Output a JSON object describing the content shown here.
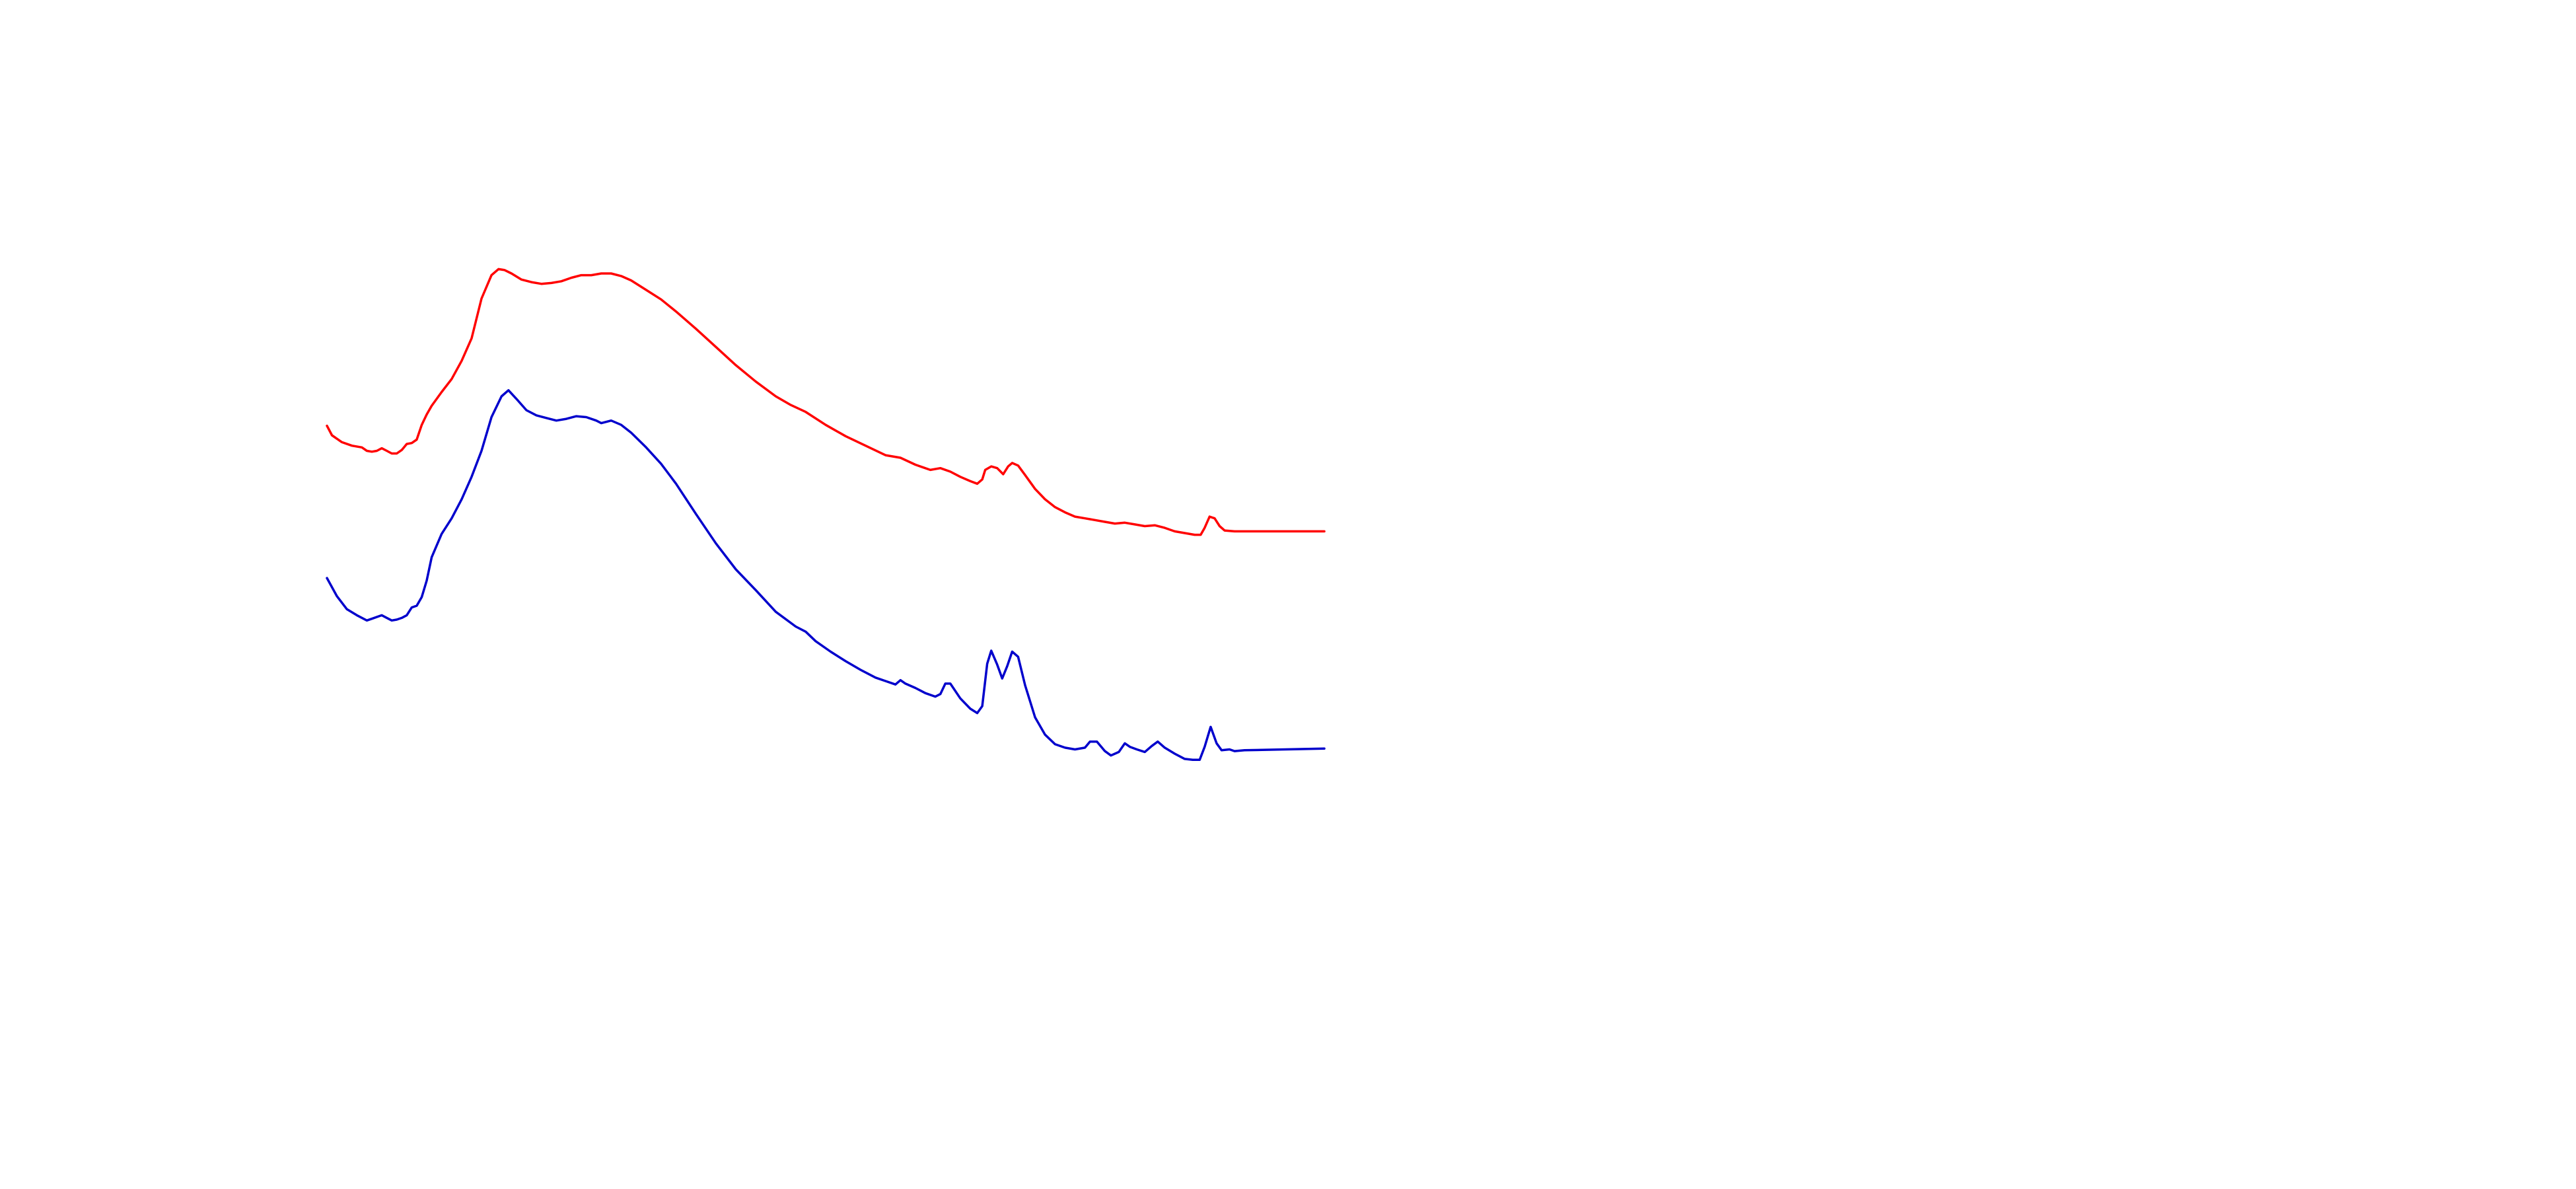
{
  "chart_data": {
    "type": "line",
    "title": "",
    "xlabel": "",
    "ylabel": "",
    "axes_visible": false,
    "grid": false,
    "legend": "none",
    "xlim": [
      0,
      100
    ],
    "ylim": [
      0,
      100
    ],
    "series": [
      {
        "color": "#ff0000",
        "points": [
          [
            0,
            69.5
          ],
          [
            0.5,
            68.4
          ],
          [
            1.5,
            67.6
          ],
          [
            2.5,
            67.2
          ],
          [
            3.5,
            67.0
          ],
          [
            4.0,
            66.6
          ],
          [
            4.5,
            66.5
          ],
          [
            5.0,
            66.6
          ],
          [
            5.5,
            66.9
          ],
          [
            6.0,
            66.6
          ],
          [
            6.5,
            66.3
          ],
          [
            7.0,
            66.3
          ],
          [
            7.5,
            66.7
          ],
          [
            8.0,
            67.4
          ],
          [
            8.5,
            67.5
          ],
          [
            9.0,
            67.9
          ],
          [
            9.5,
            69.6
          ],
          [
            10.0,
            70.8
          ],
          [
            10.5,
            71.8
          ],
          [
            11.5,
            73.4
          ],
          [
            12.5,
            74.9
          ],
          [
            13.5,
            77.0
          ],
          [
            14.5,
            79.6
          ],
          [
            15.5,
            84.2
          ],
          [
            16.5,
            86.9
          ],
          [
            17.2,
            87.6
          ],
          [
            17.8,
            87.5
          ],
          [
            18.5,
            87.1
          ],
          [
            19.5,
            86.4
          ],
          [
            20.5,
            86.1
          ],
          [
            21.5,
            85.9
          ],
          [
            22.5,
            86.0
          ],
          [
            23.5,
            86.2
          ],
          [
            24.5,
            86.6
          ],
          [
            25.5,
            86.9
          ],
          [
            26.5,
            86.9
          ],
          [
            27.5,
            87.1
          ],
          [
            28.5,
            87.1
          ],
          [
            29.5,
            86.8
          ],
          [
            30.5,
            86.3
          ],
          [
            32.0,
            85.2
          ],
          [
            33.5,
            84.1
          ],
          [
            35.0,
            82.7
          ],
          [
            37.0,
            80.7
          ],
          [
            39.0,
            78.6
          ],
          [
            41.0,
            76.5
          ],
          [
            43.0,
            74.6
          ],
          [
            45.0,
            72.9
          ],
          [
            46.5,
            71.9
          ],
          [
            48.0,
            71.1
          ],
          [
            50.0,
            69.6
          ],
          [
            52.0,
            68.3
          ],
          [
            54.0,
            67.2
          ],
          [
            56.0,
            66.1
          ],
          [
            57.5,
            65.8
          ],
          [
            59.0,
            65.0
          ],
          [
            60.5,
            64.4
          ],
          [
            61.5,
            64.6
          ],
          [
            62.5,
            64.2
          ],
          [
            63.5,
            63.6
          ],
          [
            64.5,
            63.1
          ],
          [
            65.2,
            62.8
          ],
          [
            65.7,
            63.3
          ],
          [
            66.0,
            64.4
          ],
          [
            66.6,
            64.8
          ],
          [
            67.2,
            64.6
          ],
          [
            67.8,
            63.9
          ],
          [
            68.3,
            64.8
          ],
          [
            68.7,
            65.2
          ],
          [
            69.3,
            64.9
          ],
          [
            70.0,
            63.8
          ],
          [
            71.0,
            62.2
          ],
          [
            72.0,
            61.0
          ],
          [
            73.0,
            60.1
          ],
          [
            74.0,
            59.5
          ],
          [
            75.0,
            59.0
          ],
          [
            76.0,
            58.8
          ],
          [
            77.0,
            58.6
          ],
          [
            78.0,
            58.4
          ],
          [
            79.0,
            58.2
          ],
          [
            80.0,
            58.3
          ],
          [
            81.0,
            58.1
          ],
          [
            82.0,
            57.9
          ],
          [
            83.0,
            58.0
          ],
          [
            84.0,
            57.7
          ],
          [
            85.0,
            57.3
          ],
          [
            86.0,
            57.1
          ],
          [
            87.0,
            56.9
          ],
          [
            87.6,
            56.9
          ],
          [
            88.0,
            57.7
          ],
          [
            88.5,
            59.0
          ],
          [
            89.0,
            58.8
          ],
          [
            89.5,
            57.9
          ],
          [
            90.0,
            57.4
          ],
          [
            91.0,
            57.3
          ],
          [
            100,
            57.3
          ]
        ]
      },
      {
        "color": "#0000cc",
        "points": [
          [
            0,
            51.9
          ],
          [
            1.0,
            49.8
          ],
          [
            2.0,
            48.3
          ],
          [
            3.0,
            47.6
          ],
          [
            4.0,
            47.0
          ],
          [
            4.5,
            47.2
          ],
          [
            5.5,
            47.6
          ],
          [
            6.0,
            47.3
          ],
          [
            6.5,
            47.0
          ],
          [
            7.0,
            47.1
          ],
          [
            7.5,
            47.3
          ],
          [
            8.0,
            47.6
          ],
          [
            8.5,
            48.5
          ],
          [
            9.0,
            48.7
          ],
          [
            9.5,
            49.7
          ],
          [
            10.0,
            51.6
          ],
          [
            10.5,
            54.3
          ],
          [
            11.5,
            57.0
          ],
          [
            12.5,
            58.8
          ],
          [
            13.5,
            61.0
          ],
          [
            14.5,
            63.6
          ],
          [
            15.5,
            66.6
          ],
          [
            16.5,
            70.5
          ],
          [
            17.5,
            72.9
          ],
          [
            18.2,
            73.6
          ],
          [
            19.0,
            72.6
          ],
          [
            20.0,
            71.3
          ],
          [
            21.0,
            70.7
          ],
          [
            22.0,
            70.4
          ],
          [
            23.0,
            70.1
          ],
          [
            24.0,
            70.3
          ],
          [
            25.0,
            70.6
          ],
          [
            26.0,
            70.5
          ],
          [
            27.0,
            70.1
          ],
          [
            27.5,
            69.8
          ],
          [
            28.5,
            70.1
          ],
          [
            29.5,
            69.6
          ],
          [
            30.5,
            68.7
          ],
          [
            32.0,
            67.0
          ],
          [
            33.5,
            65.1
          ],
          [
            35.0,
            62.8
          ],
          [
            37.0,
            59.3
          ],
          [
            39.0,
            55.9
          ],
          [
            41.0,
            52.9
          ],
          [
            43.0,
            50.5
          ],
          [
            45.0,
            48.0
          ],
          [
            47.0,
            46.3
          ],
          [
            48.0,
            45.7
          ],
          [
            49.0,
            44.6
          ],
          [
            50.5,
            43.4
          ],
          [
            52.0,
            42.3
          ],
          [
            53.5,
            41.3
          ],
          [
            55.0,
            40.4
          ],
          [
            56.0,
            40.0
          ],
          [
            57.0,
            39.6
          ],
          [
            57.5,
            40.1
          ],
          [
            58.0,
            39.7
          ],
          [
            59.0,
            39.2
          ],
          [
            60.0,
            38.6
          ],
          [
            61.0,
            38.2
          ],
          [
            61.5,
            38.5
          ],
          [
            62.0,
            39.7
          ],
          [
            62.5,
            39.7
          ],
          [
            63.5,
            38.0
          ],
          [
            64.5,
            36.8
          ],
          [
            65.2,
            36.3
          ],
          [
            65.7,
            37.1
          ],
          [
            66.2,
            42.0
          ],
          [
            66.6,
            43.5
          ],
          [
            67.2,
            41.9
          ],
          [
            67.7,
            40.3
          ],
          [
            68.2,
            41.7
          ],
          [
            68.7,
            43.4
          ],
          [
            69.3,
            42.8
          ],
          [
            70.0,
            39.5
          ],
          [
            71.0,
            35.8
          ],
          [
            72.0,
            33.8
          ],
          [
            73.0,
            32.7
          ],
          [
            74.0,
            32.3
          ],
          [
            75.0,
            32.1
          ],
          [
            76.0,
            32.3
          ],
          [
            76.5,
            33.0
          ],
          [
            77.2,
            33.0
          ],
          [
            78.0,
            31.9
          ],
          [
            78.6,
            31.4
          ],
          [
            79.4,
            31.8
          ],
          [
            80.0,
            32.8
          ],
          [
            80.5,
            32.4
          ],
          [
            81.2,
            32.1
          ],
          [
            82.0,
            31.8
          ],
          [
            82.7,
            32.5
          ],
          [
            83.3,
            33.0
          ],
          [
            84.0,
            32.3
          ],
          [
            85.0,
            31.6
          ],
          [
            86.0,
            31.0
          ],
          [
            86.8,
            30.9
          ],
          [
            87.5,
            30.9
          ],
          [
            88.0,
            32.4
          ],
          [
            88.6,
            34.7
          ],
          [
            89.2,
            32.8
          ],
          [
            89.7,
            32.0
          ],
          [
            90.5,
            32.1
          ],
          [
            91.0,
            31.9
          ],
          [
            92.0,
            32.0
          ],
          [
            100,
            32.2
          ]
        ]
      }
    ]
  }
}
